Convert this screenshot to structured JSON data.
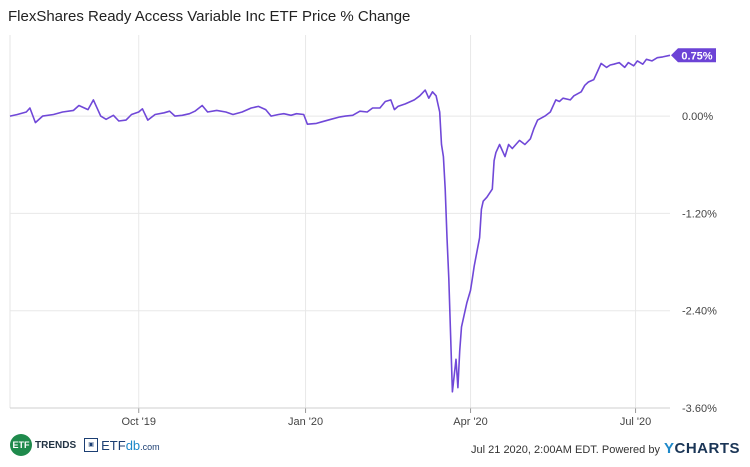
{
  "title": "FlexShares Ready Access Variable Inc ETF Price % Change",
  "footer": {
    "timestamp_text": "Jul 21 2020, 2:00AM EDT. Powered by",
    "brand_y": "Y",
    "brand_rest": "CHARTS",
    "etf_trends_badge": "ETF",
    "etf_trends_text": "TRENDS",
    "etfdb_text_a": "ETF",
    "etfdb_text_b": "db",
    "etfdb_text_c": ".com"
  },
  "colors": {
    "line": "#7048d8",
    "grid": "#e8e8e8",
    "axis_text": "#444444",
    "last_value_bg": "#6c43d6"
  },
  "chart_data": {
    "type": "line",
    "title": "FlexShares Ready Access Variable Inc ETF Price % Change",
    "xlabel": "",
    "ylabel": "",
    "x_range": [
      "2019-07-22",
      "2020-07-20"
    ],
    "ylim": [
      -3.6,
      1.0
    ],
    "yticks": [
      0.0,
      -1.2,
      -2.4,
      -3.6
    ],
    "ytick_labels": [
      "0.00%",
      "-1.20%",
      "-2.40%",
      "-3.60%"
    ],
    "xticks": [
      {
        "x": "2019-10-01",
        "label": "Oct '19"
      },
      {
        "x": "2020-01-01",
        "label": "Jan '20"
      },
      {
        "x": "2020-04-01",
        "label": "Apr '20"
      },
      {
        "x": "2020-07-01",
        "label": "Jul '20"
      }
    ],
    "grid": true,
    "last_value_label": "0.75%",
    "series": [
      {
        "values": [
          {
            "x": "2019-07-22",
            "y": 0.0
          },
          {
            "x": "2019-07-26",
            "y": 0.02
          },
          {
            "x": "2019-07-31",
            "y": 0.05
          },
          {
            "x": "2019-08-02",
            "y": 0.1
          },
          {
            "x": "2019-08-05",
            "y": -0.08
          },
          {
            "x": "2019-08-09",
            "y": 0.0
          },
          {
            "x": "2019-08-15",
            "y": 0.02
          },
          {
            "x": "2019-08-20",
            "y": 0.05
          },
          {
            "x": "2019-08-26",
            "y": 0.07
          },
          {
            "x": "2019-08-29",
            "y": 0.13
          },
          {
            "x": "2019-09-03",
            "y": 0.08
          },
          {
            "x": "2019-09-06",
            "y": 0.2
          },
          {
            "x": "2019-09-10",
            "y": 0.0
          },
          {
            "x": "2019-09-13",
            "y": -0.04
          },
          {
            "x": "2019-09-17",
            "y": 0.01
          },
          {
            "x": "2019-09-20",
            "y": -0.06
          },
          {
            "x": "2019-09-24",
            "y": -0.05
          },
          {
            "x": "2019-09-27",
            "y": 0.02
          },
          {
            "x": "2019-10-01",
            "y": 0.05
          },
          {
            "x": "2019-10-03",
            "y": 0.09
          },
          {
            "x": "2019-10-06",
            "y": -0.05
          },
          {
            "x": "2019-10-10",
            "y": 0.02
          },
          {
            "x": "2019-10-15",
            "y": 0.04
          },
          {
            "x": "2019-10-18",
            "y": 0.06
          },
          {
            "x": "2019-10-21",
            "y": 0.0
          },
          {
            "x": "2019-10-25",
            "y": 0.01
          },
          {
            "x": "2019-10-29",
            "y": 0.03
          },
          {
            "x": "2019-11-01",
            "y": 0.06
          },
          {
            "x": "2019-11-05",
            "y": 0.13
          },
          {
            "x": "2019-11-08",
            "y": 0.05
          },
          {
            "x": "2019-11-13",
            "y": 0.07
          },
          {
            "x": "2019-11-18",
            "y": 0.05
          },
          {
            "x": "2019-11-22",
            "y": 0.02
          },
          {
            "x": "2019-11-27",
            "y": 0.05
          },
          {
            "x": "2019-12-02",
            "y": 0.1
          },
          {
            "x": "2019-12-06",
            "y": 0.12
          },
          {
            "x": "2019-12-10",
            "y": 0.08
          },
          {
            "x": "2019-12-13",
            "y": 0.0
          },
          {
            "x": "2019-12-17",
            "y": 0.02
          },
          {
            "x": "2019-12-20",
            "y": 0.03
          },
          {
            "x": "2019-12-24",
            "y": 0.01
          },
          {
            "x": "2019-12-27",
            "y": 0.03
          },
          {
            "x": "2019-12-31",
            "y": 0.02
          },
          {
            "x": "2020-01-02",
            "y": -0.1
          },
          {
            "x": "2020-01-07",
            "y": -0.09
          },
          {
            "x": "2020-01-10",
            "y": -0.07
          },
          {
            "x": "2020-01-15",
            "y": -0.04
          },
          {
            "x": "2020-01-20",
            "y": -0.01
          },
          {
            "x": "2020-01-23",
            "y": 0.0
          },
          {
            "x": "2020-01-27",
            "y": 0.01
          },
          {
            "x": "2020-01-31",
            "y": 0.06
          },
          {
            "x": "2020-02-04",
            "y": 0.05
          },
          {
            "x": "2020-02-07",
            "y": 0.1
          },
          {
            "x": "2020-02-11",
            "y": 0.1
          },
          {
            "x": "2020-02-14",
            "y": 0.18
          },
          {
            "x": "2020-02-17",
            "y": 0.2
          },
          {
            "x": "2020-02-19",
            "y": 0.08
          },
          {
            "x": "2020-02-21",
            "y": 0.12
          },
          {
            "x": "2020-02-25",
            "y": 0.15
          },
          {
            "x": "2020-03-01",
            "y": 0.2
          },
          {
            "x": "2020-03-04",
            "y": 0.25
          },
          {
            "x": "2020-03-07",
            "y": 0.32
          },
          {
            "x": "2020-03-09",
            "y": 0.22
          },
          {
            "x": "2020-03-11",
            "y": 0.3
          },
          {
            "x": "2020-03-13",
            "y": 0.25
          },
          {
            "x": "2020-03-15",
            "y": 0.05
          },
          {
            "x": "2020-03-16",
            "y": -0.35
          },
          {
            "x": "2020-03-17",
            "y": -0.5
          },
          {
            "x": "2020-03-18",
            "y": -0.9
          },
          {
            "x": "2020-03-19",
            "y": -1.5
          },
          {
            "x": "2020-03-20",
            "y": -2.0
          },
          {
            "x": "2020-03-21",
            "y": -2.7
          },
          {
            "x": "2020-03-22",
            "y": -3.4
          },
          {
            "x": "2020-03-24",
            "y": -3.0
          },
          {
            "x": "2020-03-25",
            "y": -3.35
          },
          {
            "x": "2020-03-26",
            "y": -2.9
          },
          {
            "x": "2020-03-27",
            "y": -2.6
          },
          {
            "x": "2020-03-30",
            "y": -2.3
          },
          {
            "x": "2020-04-01",
            "y": -2.15
          },
          {
            "x": "2020-04-02",
            "y": -2.0
          },
          {
            "x": "2020-04-03",
            "y": -1.85
          },
          {
            "x": "2020-04-06",
            "y": -1.5
          },
          {
            "x": "2020-04-07",
            "y": -1.15
          },
          {
            "x": "2020-04-08",
            "y": -1.05
          },
          {
            "x": "2020-04-10",
            "y": -1.0
          },
          {
            "x": "2020-04-13",
            "y": -0.9
          },
          {
            "x": "2020-04-14",
            "y": -0.55
          },
          {
            "x": "2020-04-15",
            "y": -0.45
          },
          {
            "x": "2020-04-17",
            "y": -0.35
          },
          {
            "x": "2020-04-20",
            "y": -0.5
          },
          {
            "x": "2020-04-22",
            "y": -0.35
          },
          {
            "x": "2020-04-24",
            "y": -0.4
          },
          {
            "x": "2020-04-28",
            "y": -0.3
          },
          {
            "x": "2020-05-01",
            "y": -0.35
          },
          {
            "x": "2020-05-04",
            "y": -0.28
          },
          {
            "x": "2020-05-06",
            "y": -0.15
          },
          {
            "x": "2020-05-08",
            "y": -0.05
          },
          {
            "x": "2020-05-12",
            "y": 0.0
          },
          {
            "x": "2020-05-15",
            "y": 0.05
          },
          {
            "x": "2020-05-18",
            "y": 0.2
          },
          {
            "x": "2020-05-20",
            "y": 0.18
          },
          {
            "x": "2020-05-22",
            "y": 0.22
          },
          {
            "x": "2020-05-26",
            "y": 0.2
          },
          {
            "x": "2020-05-28",
            "y": 0.25
          },
          {
            "x": "2020-06-01",
            "y": 0.3
          },
          {
            "x": "2020-06-03",
            "y": 0.38
          },
          {
            "x": "2020-06-05",
            "y": 0.42
          },
          {
            "x": "2020-06-08",
            "y": 0.45
          },
          {
            "x": "2020-06-10",
            "y": 0.55
          },
          {
            "x": "2020-06-12",
            "y": 0.65
          },
          {
            "x": "2020-06-15",
            "y": 0.6
          },
          {
            "x": "2020-06-17",
            "y": 0.63
          },
          {
            "x": "2020-06-19",
            "y": 0.64
          },
          {
            "x": "2020-06-22",
            "y": 0.66
          },
          {
            "x": "2020-06-25",
            "y": 0.6
          },
          {
            "x": "2020-06-27",
            "y": 0.66
          },
          {
            "x": "2020-06-30",
            "y": 0.62
          },
          {
            "x": "2020-07-02",
            "y": 0.68
          },
          {
            "x": "2020-07-05",
            "y": 0.64
          },
          {
            "x": "2020-07-07",
            "y": 0.7
          },
          {
            "x": "2020-07-10",
            "y": 0.68
          },
          {
            "x": "2020-07-13",
            "y": 0.72
          },
          {
            "x": "2020-07-16",
            "y": 0.73
          },
          {
            "x": "2020-07-20",
            "y": 0.75
          }
        ]
      }
    ]
  }
}
